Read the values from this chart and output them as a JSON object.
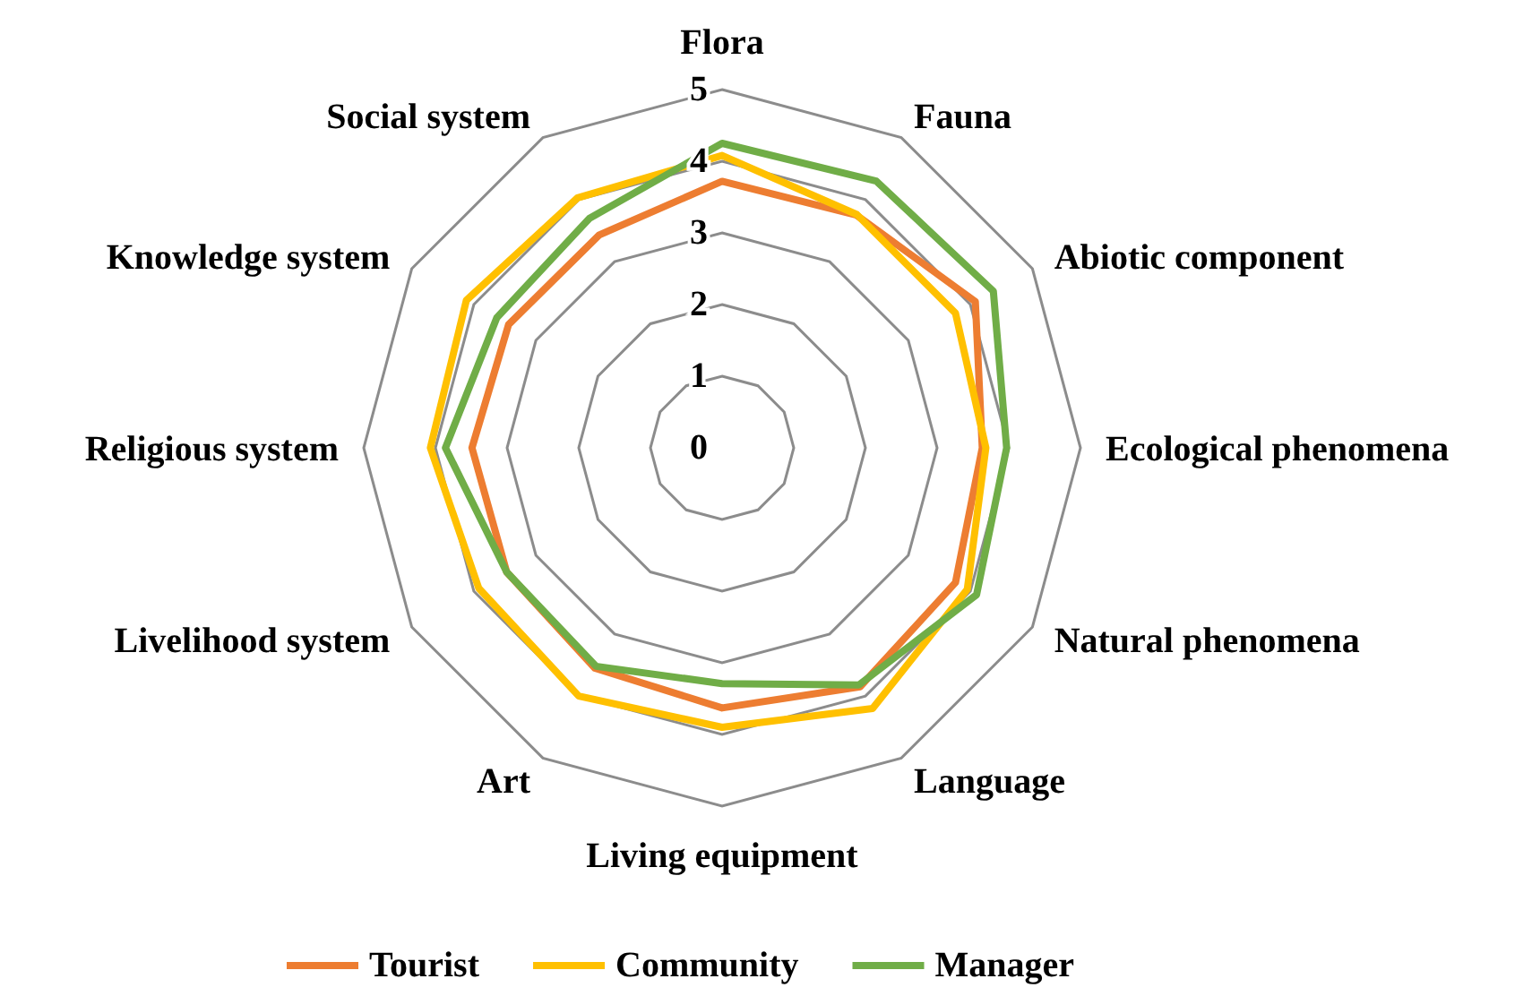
{
  "chart_data": {
    "type": "radar",
    "categories": [
      "Flora",
      "Fauna",
      "Abiotic component",
      "Ecological phenomena",
      "Natural phenomena",
      "Language",
      "Living equipment",
      "Art",
      "Livelihood system",
      "Religious system",
      "Knowledge system",
      "Social system"
    ],
    "series": [
      {
        "name": "Tourist",
        "color": "#ed7d31",
        "values": [
          3.72,
          3.75,
          4.08,
          3.63,
          3.76,
          3.85,
          3.63,
          3.55,
          3.47,
          3.49,
          3.44,
          3.43
        ]
      },
      {
        "name": "Community",
        "color": "#ffc000",
        "values": [
          4.08,
          3.76,
          3.76,
          3.68,
          3.95,
          4.2,
          3.9,
          4.0,
          3.92,
          4.07,
          4.12,
          4.03
        ]
      },
      {
        "name": "Manager",
        "color": "#70ad47",
        "values": [
          4.25,
          4.3,
          4.37,
          3.97,
          4.1,
          3.82,
          3.29,
          3.52,
          3.47,
          3.86,
          3.63,
          3.7
        ]
      }
    ],
    "ylim": [
      0,
      5
    ],
    "yticks": [
      0,
      1,
      2,
      3,
      4,
      5
    ],
    "grid": true,
    "legend": "bottom",
    "line_style": "solid",
    "marker": "none"
  }
}
